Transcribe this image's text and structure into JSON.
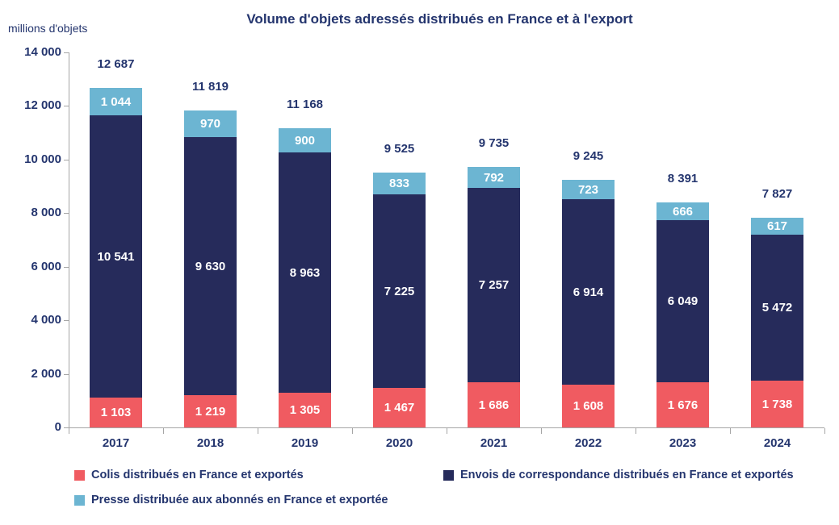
{
  "title": "Volume d'objets adressés distribués en France et à l'export",
  "colors": {
    "text_navy": "#24356E",
    "axis_gray": "#A6A6A6",
    "colis_red": "#F05B61",
    "correspondance_navy": "#262B5B",
    "presse_blue": "#6CB5D2",
    "value_label_white": "#FFFFFF",
    "background": "#FFFFFF"
  },
  "chart_data": {
    "type": "bar",
    "stacked": true,
    "title": "Volume d'objets adressés distribués en France et à l'export",
    "xlabel": "",
    "ylabel": "millions d'objets",
    "ylim": [
      0,
      14000
    ],
    "yticks": [
      0,
      2000,
      4000,
      6000,
      8000,
      10000,
      12000,
      14000
    ],
    "ytick_labels": [
      "0",
      "2 000",
      "4 000",
      "6 000",
      "8 000",
      "10 000",
      "12 000",
      "14 000"
    ],
    "grid": false,
    "legend_position": "bottom",
    "categories": [
      "2017",
      "2018",
      "2019",
      "2020",
      "2021",
      "2022",
      "2023",
      "2024"
    ],
    "series": [
      {
        "name": "Colis distribués en France et exportés",
        "color": "#F05B61",
        "values": [
          1103,
          1219,
          1305,
          1467,
          1686,
          1608,
          1676,
          1738
        ],
        "labels": [
          "1 103",
          "1 219",
          "1 305",
          "1 467",
          "1 686",
          "1 608",
          "1 676",
          "1 738"
        ]
      },
      {
        "name": "Envois de correspondance distribués en France et exportés",
        "color": "#262B5B",
        "values": [
          10541,
          9630,
          8963,
          7225,
          7257,
          6914,
          6049,
          5472
        ],
        "labels": [
          "10 541",
          "9 630",
          "8 963",
          "7 225",
          "7 257",
          "6 914",
          "6 049",
          "5 472"
        ]
      },
      {
        "name": "Presse distribuée aux abonnés en France et exportée",
        "color": "#6CB5D2",
        "values": [
          1044,
          970,
          900,
          833,
          792,
          723,
          666,
          617
        ],
        "labels": [
          "1 044",
          "970",
          "900",
          "833",
          "792",
          "723",
          "666",
          "617"
        ]
      }
    ],
    "totals": {
      "values": [
        12687,
        11819,
        11168,
        9525,
        9735,
        9245,
        8391,
        7827
      ],
      "labels": [
        "12 687",
        "11 819",
        "11 168",
        "9 525",
        "9 735",
        "9 245",
        "8 391",
        "7 827"
      ]
    }
  }
}
